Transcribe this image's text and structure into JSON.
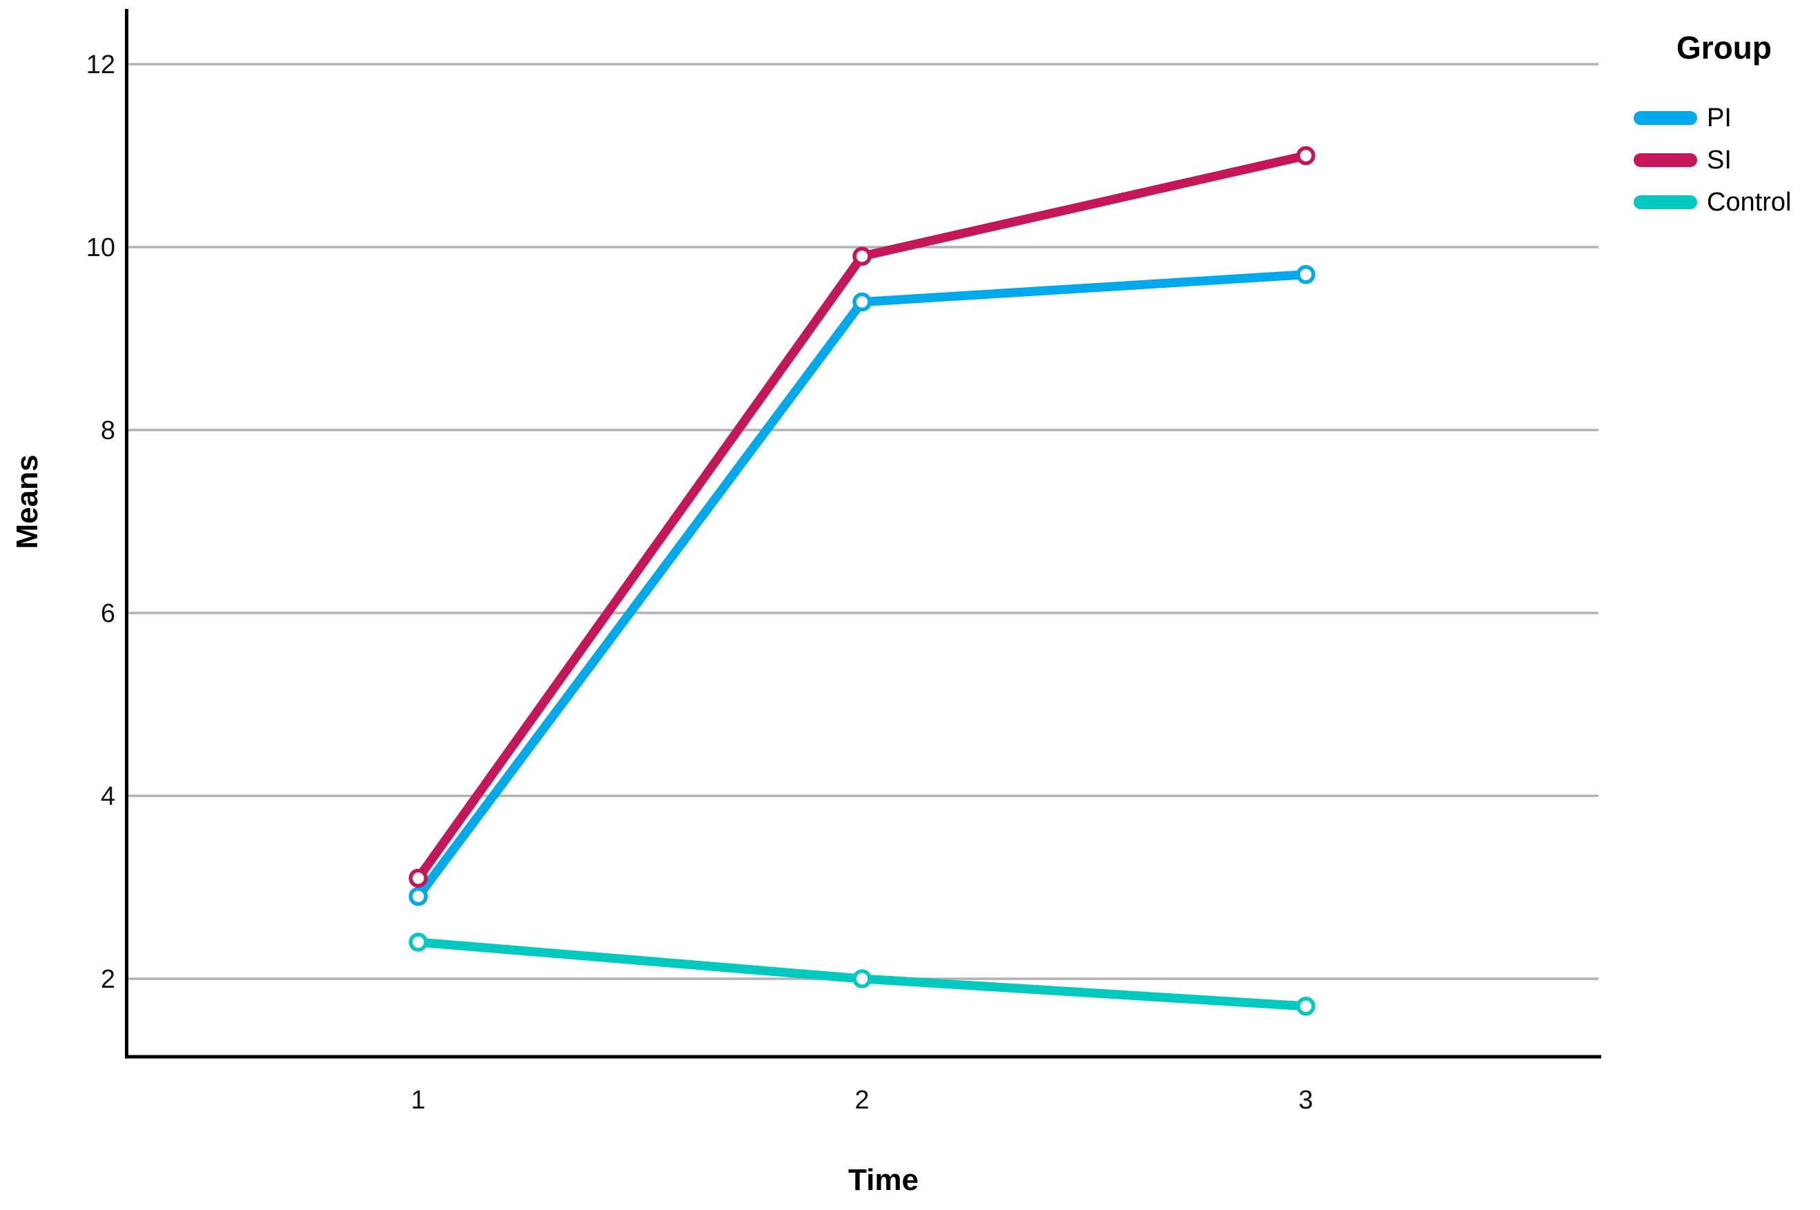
{
  "chart_data": {
    "type": "line",
    "title": "",
    "xlabel": "Time",
    "ylabel": "Means",
    "legend_title": "Group",
    "legend_position": "right",
    "x": [
      1,
      2,
      3
    ],
    "x_tick_labels": [
      "1",
      "2",
      "3"
    ],
    "y_ticks": [
      2,
      4,
      6,
      8,
      10,
      12
    ],
    "ylim": [
      1.15,
      12.6
    ],
    "grid": "horizontal gridlines at each y tick",
    "marker": "open-circle",
    "series": [
      {
        "name": "PI",
        "color": "#00A8EC",
        "values": [
          2.9,
          9.4,
          9.7
        ]
      },
      {
        "name": "SI",
        "color": "#C41658",
        "values": [
          3.1,
          9.9,
          11.0
        ]
      },
      {
        "name": "Control",
        "color": "#00C9C0",
        "values": [
          2.4,
          2.0,
          1.7
        ]
      }
    ],
    "colors": {
      "gridline": "#b2b2b2",
      "axis": "#000000",
      "marker_fill": "#ffffff",
      "text": "#000000"
    }
  }
}
